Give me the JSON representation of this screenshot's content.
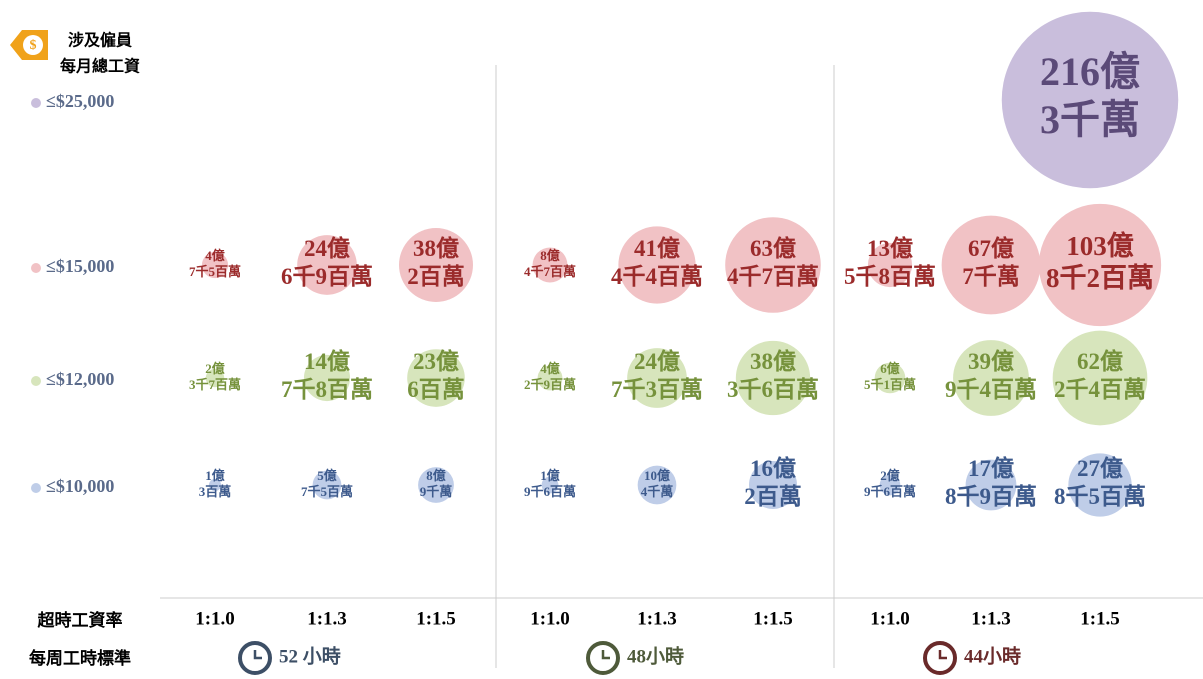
{
  "chart_data": {
    "type": "bubble",
    "legend_title": [
      "涉及僱員",
      "每月總工資"
    ],
    "x_row_label": "超時工資率",
    "group_row_label": "每周工時標準",
    "categories": [
      "1:1.0",
      "1:1.3",
      "1:1.5",
      "1:1.0",
      "1:1.3",
      "1:1.5",
      "1:1.0",
      "1:1.3",
      "1:1.5"
    ],
    "groups": [
      {
        "label": "52 小時",
        "color": "#3d4f66"
      },
      {
        "label": "48小時",
        "color": "#4e5a3a"
      },
      {
        "label": "44小時",
        "color": "#6a2a2a"
      }
    ],
    "series": [
      {
        "name": "≤$25,000",
        "color": "#c9bedc",
        "text_color": "#5b4a78",
        "values": [
          null,
          null,
          null,
          null,
          null,
          null,
          null,
          null,
          216.3
        ],
        "value_labels": [
          null,
          null,
          null,
          null,
          null,
          null,
          null,
          null,
          "216億3千萬"
        ]
      },
      {
        "name": "≤$15,000",
        "color": "#f1c2c5",
        "text_color": "#9b2b2b",
        "values": [
          4.75,
          24.69,
          38.02,
          8.47,
          41.44,
          63.47,
          13.58,
          67.7,
          103.82
        ],
        "value_labels": [
          "4億7千5百萬",
          "24億6千9百萬",
          "38億2百萬",
          "8億4千7百萬",
          "41億4千4百萬",
          "63億4千7百萬",
          "13億5千8百萬",
          "67億7千萬",
          "103億8千2百萬"
        ]
      },
      {
        "name": "≤$12,000",
        "color": "#d7e5bc",
        "text_color": "#76923c",
        "values": [
          2.37,
          14.78,
          23.06,
          4.29,
          24.73,
          38.36,
          6.51,
          39.94,
          62.24
        ],
        "value_labels": [
          "2億3千7百萬",
          "14億7千8百萬",
          "23億6百萬",
          "4億2千9百萬",
          "24億7千3百萬",
          "38億3千6百萬",
          "6億5千1百萬",
          "39億9千4百萬",
          "62億2千4百萬"
        ]
      },
      {
        "name": "≤$10,000",
        "color": "#bfcde8",
        "text_color": "#3d5a8c",
        "values": [
          1.03,
          5.75,
          8.9,
          1.96,
          10.4,
          16.02,
          2.96,
          17.89,
          27.85
        ],
        "value_labels": [
          "1億3百萬",
          "5億7千5百萬",
          "8億9千萬",
          "1億9千6百萬",
          "10億4千萬",
          "16億2百萬",
          "2億9千6百萬",
          "17億8千9百萬",
          "27億8千5百萬"
        ]
      }
    ]
  }
}
